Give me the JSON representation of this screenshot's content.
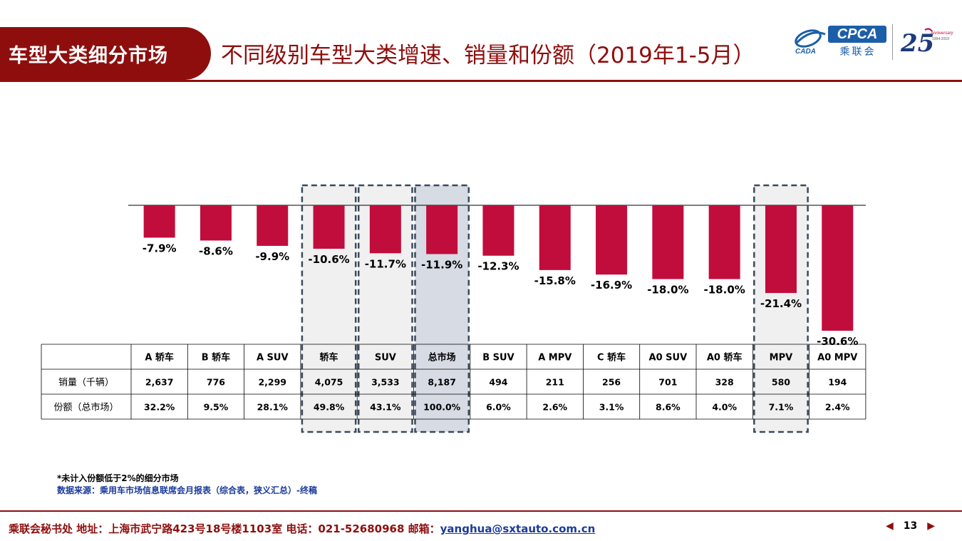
{
  "header": {
    "section_label": "车型大类细分市场",
    "title": "不同级别车型大类增速、销量和份额（2019年1-5月）",
    "logo_cpca": "CPCA",
    "logo_cpca_cn": "乘联会",
    "logo_cada": "CADA",
    "logo_anniversary_text": "Anniversary",
    "logo_anniversary_years": "1994-2019"
  },
  "colors": {
    "brand": "#8e0e0e",
    "bar": "#c10d3c",
    "highlight_fill": "#f0f0f0",
    "total_fill": "#d6dbe4",
    "dash": "#3a4a5c",
    "source_blue": "#1a3a9c"
  },
  "chart_data": {
    "type": "bar",
    "categories": [
      "A 轿车",
      "B 轿车",
      "A SUV",
      "轿车",
      "SUV",
      "总市场",
      "B SUV",
      "A MPV",
      "C 轿车",
      "A0 SUV",
      "A0 轿车",
      "MPV",
      "A0 MPV"
    ],
    "values": [
      -7.9,
      -8.6,
      -9.9,
      -10.6,
      -11.7,
      -11.9,
      -12.3,
      -15.8,
      -16.9,
      -18.0,
      -18.0,
      -21.4,
      -30.6
    ],
    "labels": [
      "-7.9%",
      "-8.6%",
      "-9.9%",
      "-10.6%",
      "-11.7%",
      "-11.9%",
      "-12.3%",
      "-15.8%",
      "-16.9%",
      "-18.0%",
      "-18.0%",
      "-21.4%",
      "-30.6%"
    ],
    "ylim": [
      -30.6,
      0
    ],
    "highlighted": [
      "轿车",
      "SUV",
      "MPV"
    ],
    "total": "总市场"
  },
  "table": {
    "rows": [
      {
        "label": "销量（千辆）",
        "values": [
          "2,637",
          "776",
          "2,299",
          "4,075",
          "3,533",
          "8,187",
          "494",
          "211",
          "256",
          "701",
          "328",
          "580",
          "194"
        ]
      },
      {
        "label": "份额（总市场）",
        "values": [
          "32.2%",
          "9.5%",
          "28.1%",
          "49.8%",
          "43.1%",
          "100.0%",
          "6.0%",
          "2.6%",
          "3.1%",
          "8.6%",
          "4.0%",
          "7.1%",
          "2.4%"
        ]
      }
    ]
  },
  "notes": {
    "note1": "*未计入份额低于2%的细分市场",
    "note2": "数据来源：乘用车市场信息联席会月报表（综合表，狭义汇总）-终稿"
  },
  "footer": {
    "text": "乘联会秘书处   地址：上海市武宁路423号18号楼1103室   电话：021-52680968   邮箱：",
    "email": "yanghua@sxtauto.com.cn",
    "page_number": "13"
  }
}
